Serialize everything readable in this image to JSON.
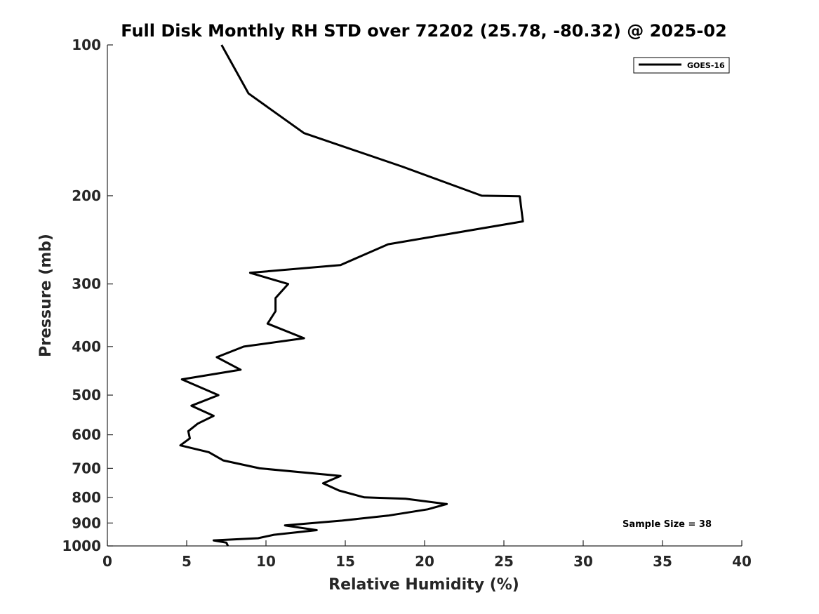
{
  "chart_data": {
    "type": "line",
    "title": "Full Disk Monthly RH STD over 72202 (25.78, -80.32) @ 2025-02",
    "xlabel": "Relative Humidity (%)",
    "ylabel": "Pressure (mb)",
    "xlim": [
      0,
      40
    ],
    "ylim": [
      1000,
      100
    ],
    "y_scale": "log",
    "y_reversed": true,
    "xticks": [
      0,
      5,
      10,
      15,
      20,
      25,
      30,
      35,
      40
    ],
    "yticks": [
      100,
      200,
      300,
      400,
      500,
      600,
      700,
      800,
      900,
      1000
    ],
    "grid": false,
    "legend_position": "top-right",
    "annotation": "Sample Size = 38",
    "series": [
      {
        "name": "GOES-16",
        "color": "#000000",
        "points": [
          [
            7.2,
            100
          ],
          [
            8.9,
            125
          ],
          [
            12.4,
            150
          ],
          [
            18.6,
            175
          ],
          [
            23.6,
            200
          ],
          [
            26.0,
            200.5
          ],
          [
            26.2,
            225
          ],
          [
            17.7,
            250
          ],
          [
            14.7,
            275
          ],
          [
            9.0,
            285
          ],
          [
            11.4,
            300
          ],
          [
            10.6,
            320
          ],
          [
            10.6,
            340
          ],
          [
            10.1,
            360
          ],
          [
            12.4,
            385
          ],
          [
            8.6,
            400
          ],
          [
            6.9,
            420
          ],
          [
            8.4,
            445
          ],
          [
            4.7,
            465
          ],
          [
            7.0,
            500
          ],
          [
            5.3,
            525
          ],
          [
            6.7,
            550
          ],
          [
            5.7,
            570
          ],
          [
            5.1,
            590
          ],
          [
            5.2,
            610
          ],
          [
            4.6,
            630
          ],
          [
            6.4,
            650
          ],
          [
            7.3,
            675
          ],
          [
            9.6,
            700
          ],
          [
            14.7,
            725
          ],
          [
            13.6,
            750
          ],
          [
            14.6,
            775
          ],
          [
            16.2,
            800
          ],
          [
            18.8,
            805
          ],
          [
            21.4,
            825
          ],
          [
            20.2,
            845
          ],
          [
            17.7,
            870
          ],
          [
            14.8,
            890
          ],
          [
            11.2,
            910
          ],
          [
            13.2,
            930
          ],
          [
            10.5,
            950
          ],
          [
            9.5,
            965
          ],
          [
            6.7,
            975
          ],
          [
            7.5,
            985
          ],
          [
            7.6,
            1000
          ]
        ]
      }
    ]
  }
}
